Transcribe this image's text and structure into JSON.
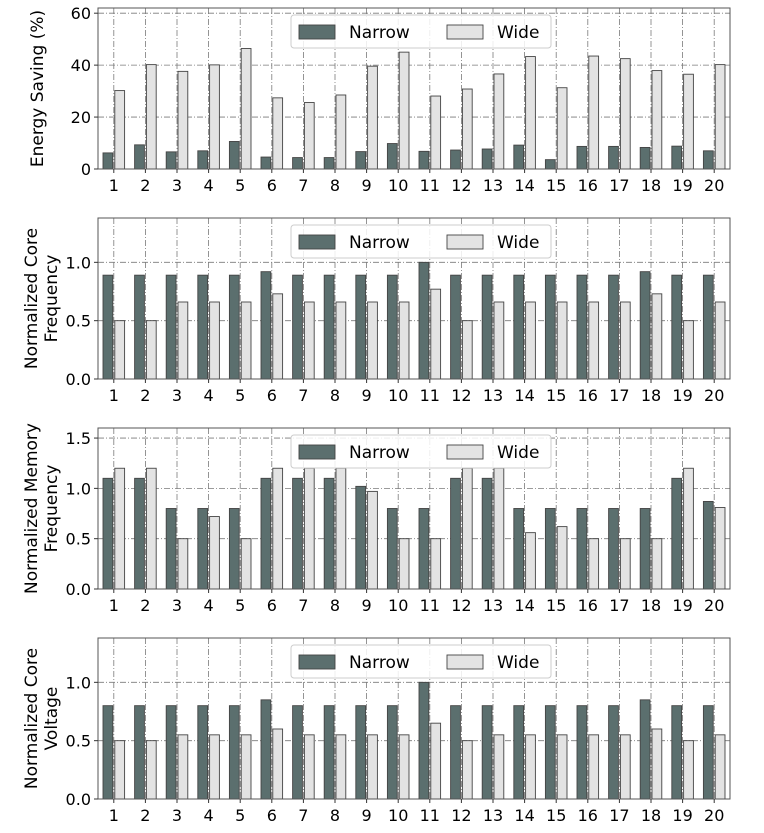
{
  "colors": {
    "narrow": "#5b6f6e",
    "wide": "#e3e3e3",
    "edge": "#444444",
    "grid": "#7a7a7a"
  },
  "chart_data": [
    {
      "type": "bar",
      "ylabel": [
        "Energy Saving (%)"
      ],
      "categories": [
        "1",
        "2",
        "3",
        "4",
        "5",
        "6",
        "7",
        "8",
        "9",
        "10",
        "11",
        "12",
        "13",
        "14",
        "15",
        "16",
        "17",
        "18",
        "19",
        "20"
      ],
      "ylim": [
        0,
        62
      ],
      "yticks": [
        "0",
        "20",
        "40",
        "60"
      ],
      "ytick_values": [
        0,
        20,
        40,
        60
      ],
      "legend": "top-center",
      "series": [
        {
          "name": "Narrow",
          "values": [
            6.2,
            9.3,
            6.6,
            7,
            10.6,
            4.6,
            4.4,
            4.4,
            6.7,
            9.8,
            6.8,
            7.3,
            7.7,
            9.2,
            3.6,
            8.7,
            8.7,
            8.3,
            8.8,
            7.0
          ]
        },
        {
          "name": "Wide",
          "values": [
            30.2,
            40.2,
            37.6,
            40.1,
            46.4,
            27.4,
            25.6,
            28.5,
            39.6,
            45,
            28.1,
            30.8,
            36.6,
            43.3,
            31.3,
            43.5,
            42.5,
            37.9,
            36.5,
            40.2
          ]
        }
      ]
    },
    {
      "type": "bar",
      "ylabel": [
        "Normalized Core",
        "Frequency"
      ],
      "categories": [
        "1",
        "2",
        "3",
        "4",
        "5",
        "6",
        "7",
        "8",
        "9",
        "10",
        "11",
        "12",
        "13",
        "14",
        "15",
        "16",
        "17",
        "18",
        "19",
        "20"
      ],
      "ylim": [
        0,
        1.38
      ],
      "yticks": [
        "0.0",
        "0.5",
        "1.0"
      ],
      "ytick_values": [
        0,
        0.5,
        1.0
      ],
      "legend": "top-center",
      "series": [
        {
          "name": "Narrow",
          "values": [
            0.89,
            0.89,
            0.89,
            0.89,
            0.89,
            0.92,
            0.89,
            0.89,
            0.89,
            0.89,
            1.0,
            0.89,
            0.89,
            0.89,
            0.89,
            0.89,
            0.89,
            0.92,
            0.89,
            0.89
          ]
        },
        {
          "name": "Wide",
          "values": [
            0.5,
            0.5,
            0.66,
            0.66,
            0.66,
            0.73,
            0.66,
            0.66,
            0.66,
            0.66,
            0.77,
            0.5,
            0.66,
            0.66,
            0.66,
            0.66,
            0.66,
            0.73,
            0.5,
            0.66
          ]
        }
      ]
    },
    {
      "type": "bar",
      "ylabel": [
        "Normalized Memory",
        "Frequency"
      ],
      "categories": [
        "1",
        "2",
        "3",
        "4",
        "5",
        "6",
        "7",
        "8",
        "9",
        "10",
        "11",
        "12",
        "13",
        "14",
        "15",
        "16",
        "17",
        "18",
        "19",
        "20"
      ],
      "ylim": [
        0,
        1.6
      ],
      "yticks": [
        "0.0",
        "0.5",
        "1.0",
        "1.5"
      ],
      "ytick_values": [
        0,
        0.5,
        1.0,
        1.5
      ],
      "legend": "top-center",
      "series": [
        {
          "name": "Narrow",
          "values": [
            1.1,
            1.1,
            0.8,
            0.8,
            0.8,
            1.1,
            1.1,
            1.1,
            1.02,
            0.8,
            0.8,
            1.1,
            1.1,
            0.8,
            0.8,
            0.8,
            0.8,
            0.8,
            1.1,
            0.87
          ]
        },
        {
          "name": "Wide",
          "values": [
            1.2,
            1.2,
            0.5,
            0.72,
            0.5,
            1.2,
            1.2,
            1.2,
            0.97,
            0.5,
            0.5,
            1.2,
            1.2,
            0.56,
            0.62,
            0.5,
            0.5,
            0.5,
            1.2,
            0.81
          ]
        }
      ]
    },
    {
      "type": "bar",
      "ylabel": [
        "Normalized Core",
        "Voltage"
      ],
      "categories": [
        "1",
        "2",
        "3",
        "4",
        "5",
        "6",
        "7",
        "8",
        "9",
        "10",
        "11",
        "12",
        "13",
        "14",
        "15",
        "16",
        "17",
        "18",
        "19",
        "20"
      ],
      "ylim": [
        0,
        1.38
      ],
      "yticks": [
        "0.0",
        "0.5",
        "1.0"
      ],
      "ytick_values": [
        0,
        0.5,
        1.0
      ],
      "legend": "top-center",
      "series": [
        {
          "name": "Narrow",
          "values": [
            0.8,
            0.8,
            0.8,
            0.8,
            0.8,
            0.85,
            0.8,
            0.8,
            0.8,
            0.8,
            1.0,
            0.8,
            0.8,
            0.8,
            0.8,
            0.8,
            0.8,
            0.85,
            0.8,
            0.8
          ]
        },
        {
          "name": "Wide",
          "values": [
            0.5,
            0.5,
            0.55,
            0.55,
            0.55,
            0.6,
            0.55,
            0.55,
            0.55,
            0.55,
            0.65,
            0.5,
            0.55,
            0.55,
            0.55,
            0.55,
            0.55,
            0.6,
            0.5,
            0.55
          ]
        }
      ]
    }
  ]
}
